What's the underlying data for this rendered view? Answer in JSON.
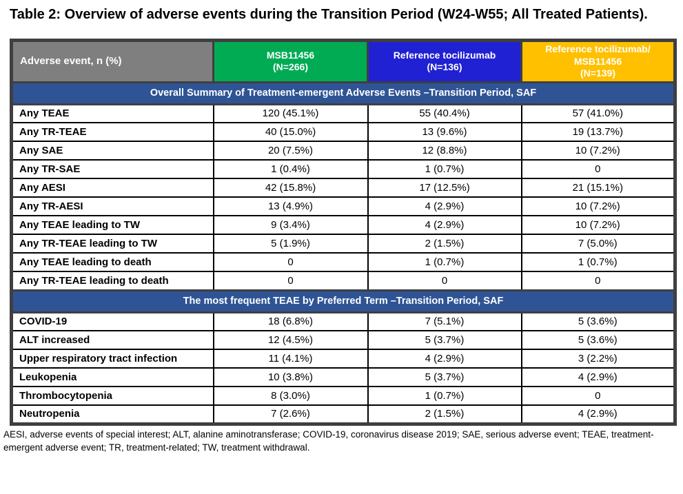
{
  "title": "Table 2: Overview of adverse events during the Transition Period (W24-W55; All Treated Patients).",
  "colors": {
    "header_gray": "#7F7F7F",
    "green": "#00AB54",
    "blue": "#2021D2",
    "gold": "#FFC000",
    "section_blue": "#2F5496",
    "border_dark": "#3F3F3F"
  },
  "columns": [
    {
      "label": "Adverse event, n (%)",
      "color_key": "header_gray"
    },
    {
      "label": "MSB11456\n(N=266)",
      "color_key": "green"
    },
    {
      "label": "Reference tocilizumab\n(N=136)",
      "color_key": "blue"
    },
    {
      "label": "Reference tocilizumab/\nMSB11456\n(N=139)",
      "color_key": "gold"
    }
  ],
  "sections": [
    {
      "header": "Overall Summary of Treatment-emergent Adverse Events –Transition Period, SAF",
      "rows": [
        {
          "label": "Any TEAE",
          "values": [
            "120 (45.1%)",
            "55 (40.4%)",
            "57 (41.0%)"
          ]
        },
        {
          "label": "Any TR-TEAE",
          "values": [
            "40 (15.0%)",
            "13 (9.6%)",
            "19 (13.7%)"
          ]
        },
        {
          "label": "Any SAE",
          "values": [
            "20 (7.5%)",
            "12 (8.8%)",
            "10 (7.2%)"
          ]
        },
        {
          "label": "Any TR-SAE",
          "values": [
            "1 (0.4%)",
            "1 (0.7%)",
            "0"
          ]
        },
        {
          "label": "Any AESI",
          "values": [
            "42 (15.8%)",
            "17 (12.5%)",
            "21 (15.1%)"
          ]
        },
        {
          "label": "Any TR-AESI",
          "values": [
            "13 (4.9%)",
            "4 (2.9%)",
            "10 (7.2%)"
          ]
        },
        {
          "label": "Any TEAE leading to TW",
          "values": [
            "9 (3.4%)",
            "4 (2.9%)",
            "10 (7.2%)"
          ]
        },
        {
          "label": "Any TR-TEAE leading to TW",
          "values": [
            "5 (1.9%)",
            "2 (1.5%)",
            "7 (5.0%)"
          ]
        },
        {
          "label": "Any TEAE leading to death",
          "values": [
            "0",
            "1 (0.7%)",
            "1 (0.7%)"
          ]
        },
        {
          "label": "Any TR-TEAE leading to death",
          "values": [
            "0",
            "0",
            "0"
          ]
        }
      ]
    },
    {
      "header": "The most frequent TEAE by Preferred Term –Transition Period, SAF",
      "rows": [
        {
          "label": "COVID-19",
          "values": [
            "18 (6.8%)",
            "7 (5.1%)",
            "5 (3.6%)"
          ]
        },
        {
          "label": "ALT increased",
          "values": [
            "12 (4.5%)",
            "5 (3.7%)",
            "5 (3.6%)"
          ]
        },
        {
          "label": "Upper respiratory tract infection",
          "values": [
            "11 (4.1%)",
            "4 (2.9%)",
            "3 (2.2%)"
          ]
        },
        {
          "label": "Leukopenia",
          "values": [
            "10 (3.8%)",
            "5 (3.7%)",
            "4 (2.9%)"
          ]
        },
        {
          "label": "Thrombocytopenia",
          "values": [
            "8 (3.0%)",
            "1 (0.7%)",
            "0"
          ]
        },
        {
          "label": "Neutropenia",
          "values": [
            "7 (2.6%)",
            "2 (1.5%)",
            "4 (2.9%)"
          ]
        }
      ]
    }
  ],
  "footnote": "AESI, adverse events of special interest; ALT, alanine aminotransferase; COVID-19, coronavirus disease 2019; SAE, serious adverse event; TEAE, treatment-emergent adverse event; TR, treatment-related; TW, treatment withdrawal."
}
